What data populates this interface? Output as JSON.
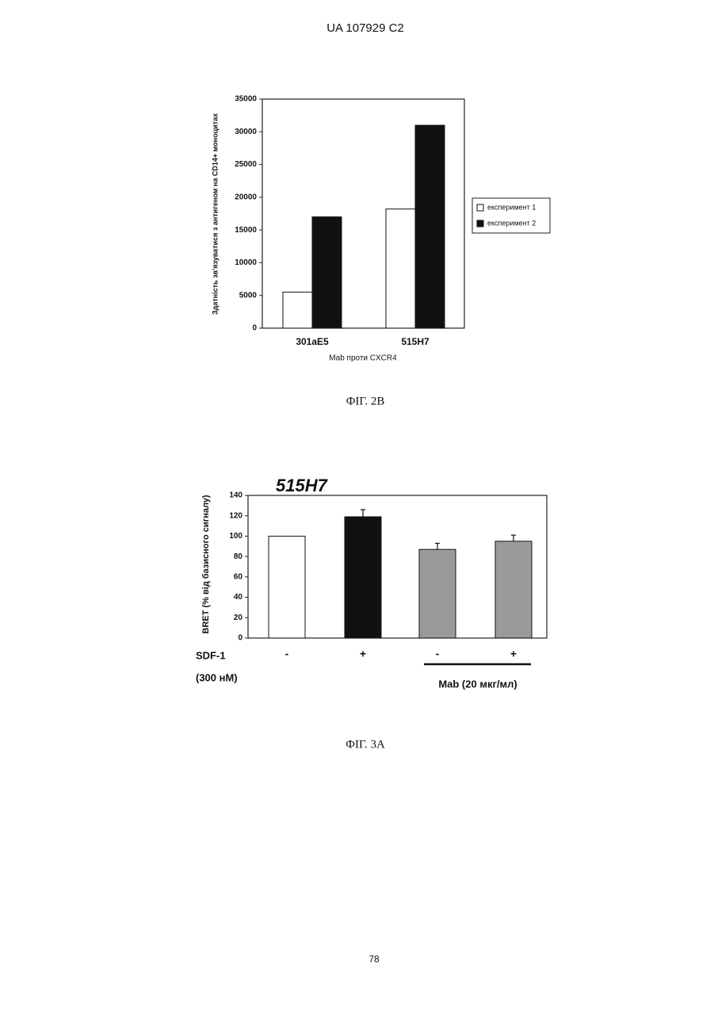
{
  "header": "UA   107929   C2",
  "page_number": "78",
  "chart_data": [
    {
      "type": "bar",
      "ylabel": "Здатність зв'язуватися з антигеном на CD14+ моноцитах",
      "xlabel": "Mab проти CXCR4",
      "caption": "ФІГ. 2В",
      "categories": [
        "301aE5",
        "515H7"
      ],
      "series": [
        {
          "name": "експеримент 1",
          "color": "#ffffff",
          "values": [
            5500,
            18200
          ]
        },
        {
          "name": "експеримент 2",
          "color": "#111111",
          "values": [
            17000,
            31000
          ]
        }
      ],
      "ylim": [
        0,
        35000
      ],
      "yticks": [
        0,
        5000,
        10000,
        15000,
        20000,
        25000,
        30000,
        35000
      ],
      "legend": "right"
    },
    {
      "type": "bar",
      "title": "515H7",
      "ylabel": "BRET (% від базисного сигналу)",
      "row_label": "SDF-1",
      "row_label_sub": "(300 нМ)",
      "group_label": "Mab (20 мкг/мл)",
      "caption": "ФІГ. 3А",
      "categories": [
        "-",
        "+",
        "-",
        "+"
      ],
      "values": [
        100,
        119,
        87,
        95
      ],
      "errors": [
        null,
        7,
        6,
        6
      ],
      "colors": [
        "#ffffff",
        "#111111",
        "#9a9a9a",
        "#9a9a9a"
      ],
      "ylim": [
        0,
        140
      ],
      "yticks": [
        0,
        20,
        40,
        60,
        80,
        100,
        120,
        140
      ]
    }
  ]
}
